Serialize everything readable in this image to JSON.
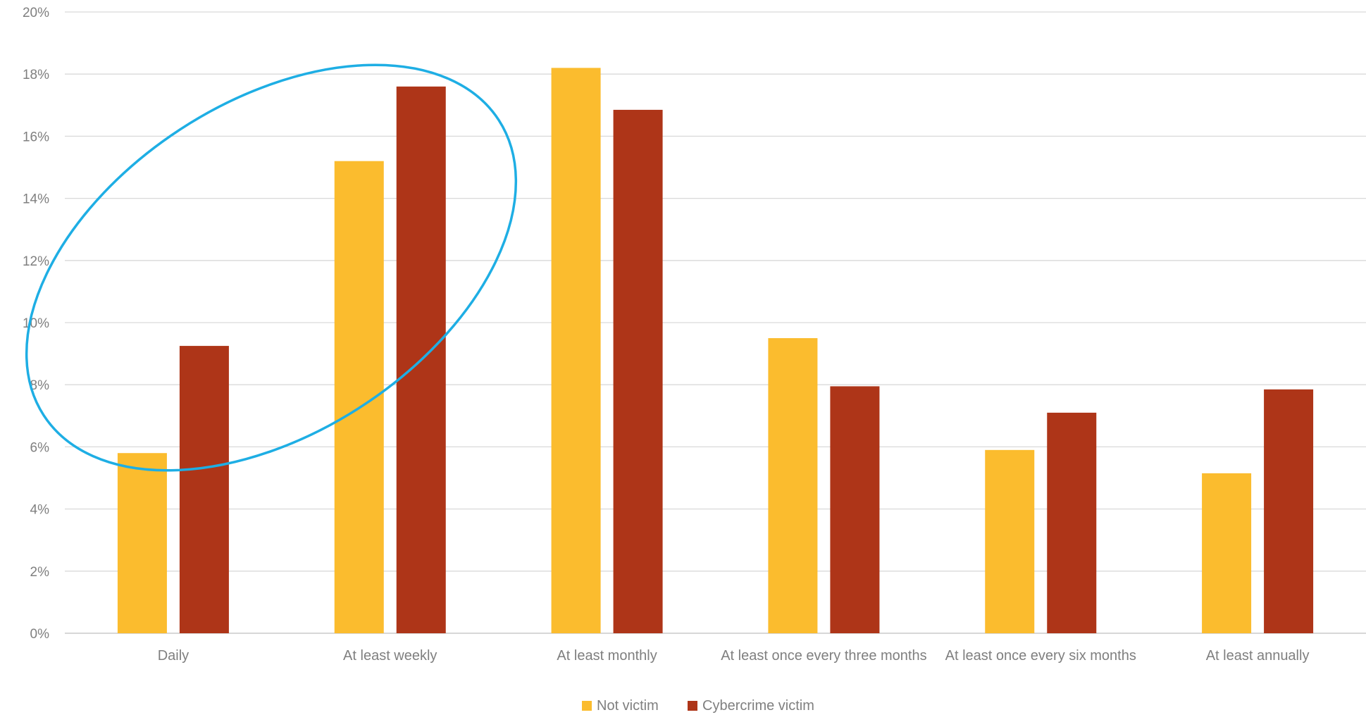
{
  "chart_data": {
    "type": "bar",
    "categories": [
      "Daily",
      "At least weekly",
      "At least monthly",
      "At least once every three months",
      "At least once every six months",
      "At least annually"
    ],
    "series": [
      {
        "name": "Not victim",
        "color": "#FBBC2E",
        "values": [
          5.8,
          15.2,
          18.2,
          9.5,
          5.9,
          5.15
        ]
      },
      {
        "name": "Cybercrime victim",
        "color": "#AE3518",
        "values": [
          9.25,
          17.6,
          16.85,
          7.95,
          7.1,
          7.85
        ]
      }
    ],
    "y_tick_labels": [
      "0%",
      "2%",
      "4%",
      "6%",
      "8%",
      "10%",
      "12%",
      "14%",
      "16%",
      "18%",
      "20%"
    ],
    "ylim": [
      0,
      20
    ],
    "grid": true,
    "legend_position": "bottom",
    "annotation": {
      "shape": "ellipse",
      "color": "#1EAEE4",
      "encircles": [
        "Daily",
        "At least weekly"
      ]
    },
    "title": "",
    "xlabel": "",
    "ylabel": ""
  }
}
